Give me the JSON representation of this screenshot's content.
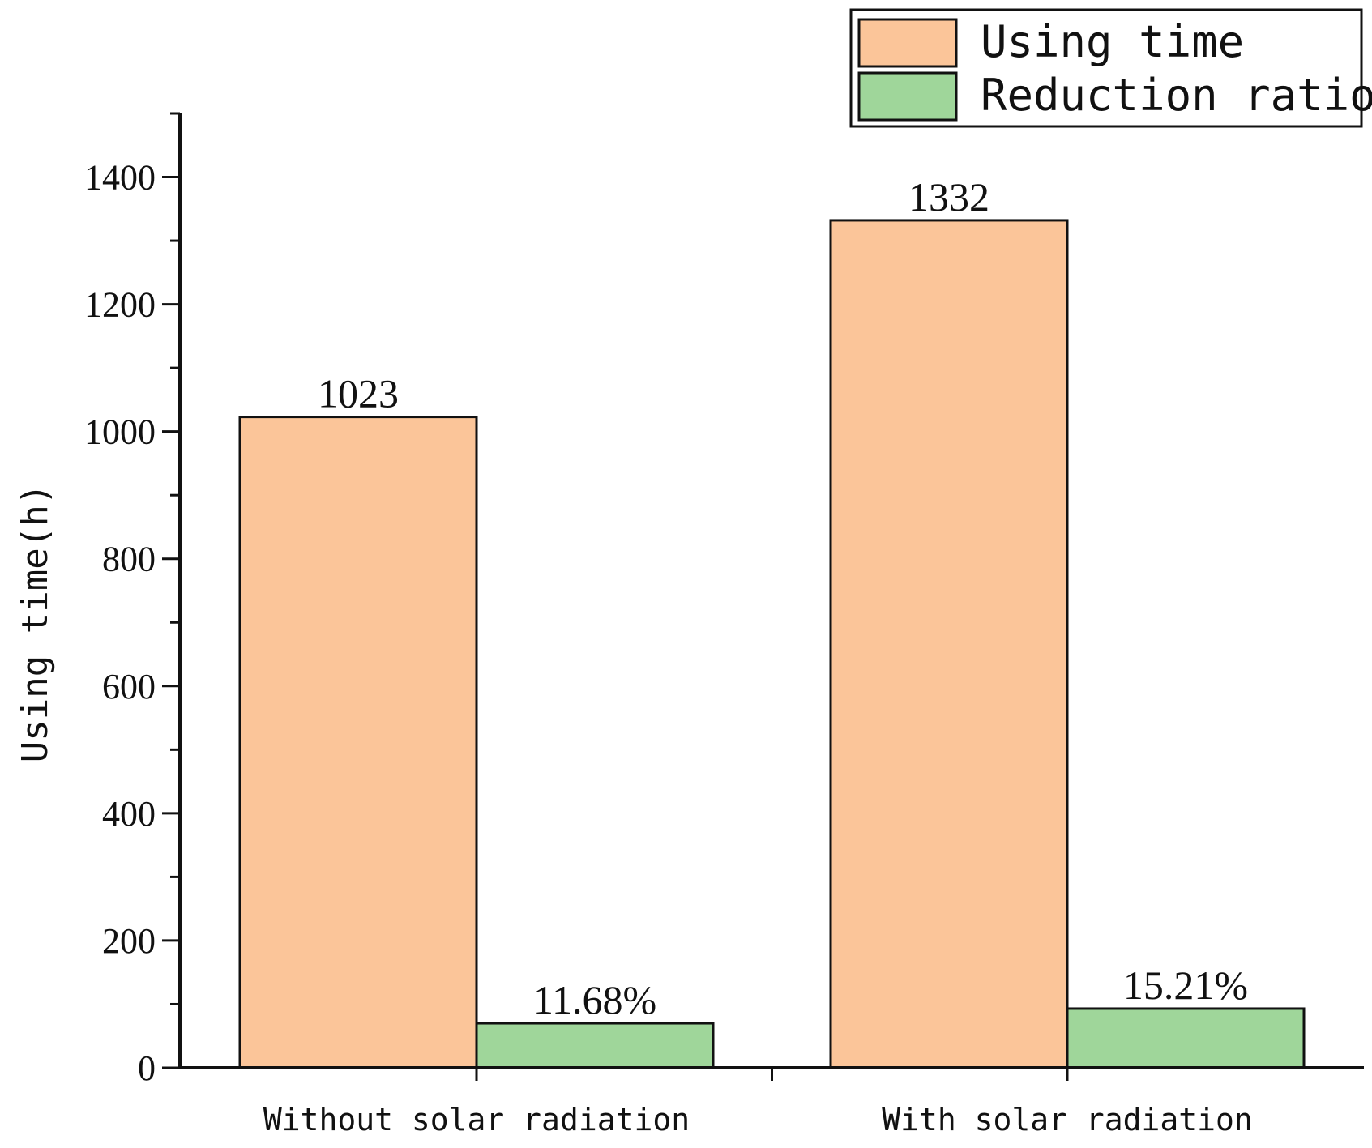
{
  "chart_data": {
    "type": "bar",
    "categories": [
      "Without solar radiation",
      "With solar radiation"
    ],
    "series": [
      {
        "name": "Using time",
        "values": [
          1023,
          1332
        ],
        "labels": [
          "1023",
          "1332"
        ],
        "color": "#FBC599"
      },
      {
        "name": "Reduction ratio",
        "values": [
          70,
          93
        ],
        "labels": [
          "11.68%",
          "15.21%"
        ],
        "color": "#9FD69A"
      }
    ],
    "ylabel": "Using time(h)",
    "ylim": [
      0,
      1500
    ],
    "yticks": [
      0,
      200,
      400,
      600,
      800,
      1000,
      1200,
      1400
    ],
    "legend_position": "top-right",
    "grid": false
  }
}
